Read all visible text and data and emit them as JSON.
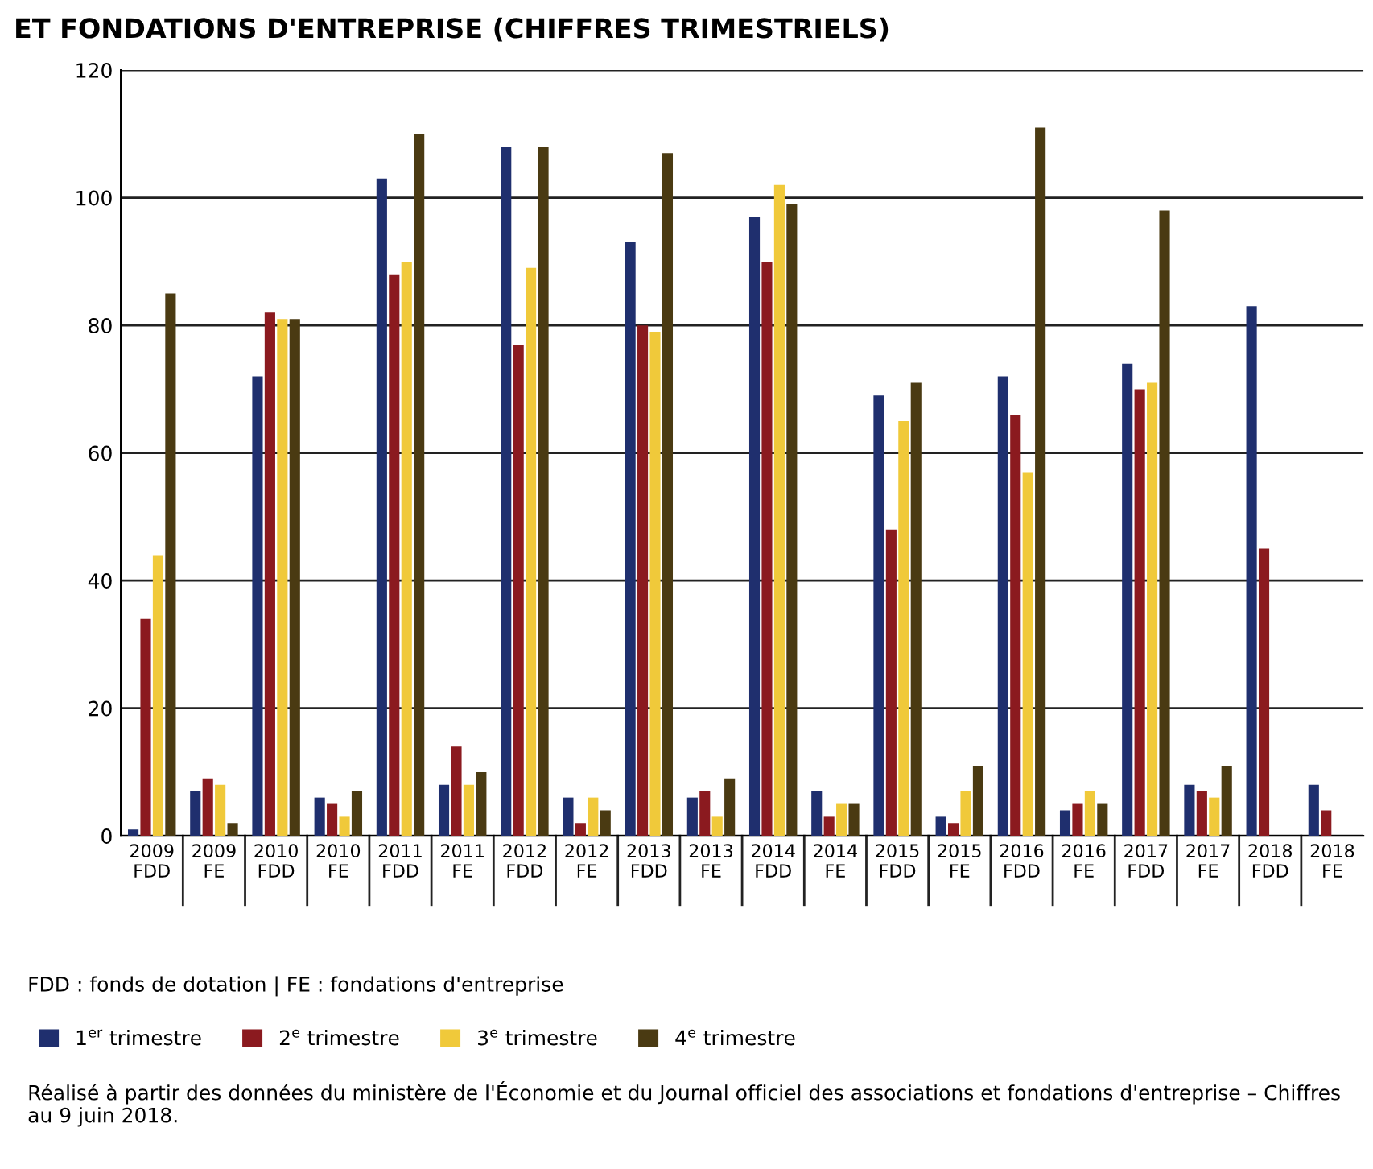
{
  "chart_data": {
    "type": "bar",
    "title": "ET FONDATIONS D'ENTREPRISE (CHIFFRES TRIMESTRIELS)",
    "categories": [
      "2009\nFDD",
      "2009\nFE",
      "2010\nFDD",
      "2010\nFE",
      "2011\nFDD",
      "2011\nFE",
      "2012\nFDD",
      "2012\nFE",
      "2013\nFDD",
      "2013\nFE",
      "2014\nFDD",
      "2014\nFE",
      "2015\nFDD",
      "2015\nFE",
      "2016\nFDD",
      "2016\nFE",
      "2017\nFDD",
      "2017\nFE",
      "2018\nFDD",
      "2018\nFE"
    ],
    "series": [
      {
        "name": "1$^{er}$ trimestre",
        "color": "#1f2f6e",
        "values": [
          1,
          7,
          72,
          6,
          103,
          8,
          108,
          6,
          93,
          6,
          97,
          7,
          69,
          3,
          72,
          4,
          74,
          8,
          83,
          8
        ]
      },
      {
        "name": "2$^{e}$ trimestre",
        "color": "#8b1a1f",
        "values": [
          34,
          9,
          82,
          5,
          88,
          14,
          77,
          2,
          80,
          7,
          90,
          3,
          48,
          2,
          66,
          5,
          70,
          7,
          45,
          4
        ]
      },
      {
        "name": "3$^{e}$ trimestre",
        "color": "#f0c93a",
        "values": [
          44,
          8,
          81,
          3,
          90,
          8,
          89,
          6,
          79,
          3,
          102,
          5,
          65,
          7,
          57,
          7,
          71,
          6,
          null,
          null
        ]
      },
      {
        "name": "4$^{e}$ trimestre",
        "color": "#4a3a12",
        "values": [
          85,
          2,
          81,
          7,
          110,
          10,
          108,
          4,
          107,
          9,
          99,
          5,
          71,
          11,
          111,
          5,
          98,
          11,
          null,
          null
        ]
      }
    ],
    "ylim": [
      0,
      120
    ],
    "yticks": [
      0,
      20,
      40,
      60,
      80,
      100,
      120
    ],
    "grid": "y",
    "legend": "bottom",
    "annotations": [
      "FDD : fonds de dotation | FE : fondations d'entreprise",
      "Réalisé à partir des données du ministère de l'Économie et du Journal officiel des associations et fondations d'entreprise – Chiffres au 9 juin 2018."
    ]
  }
}
